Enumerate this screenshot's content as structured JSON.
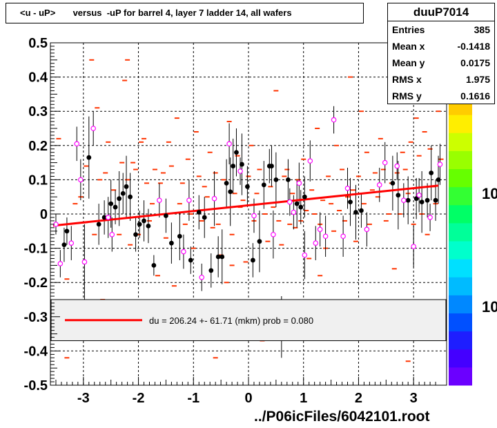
{
  "title": "<u - uP>       versus  -uP for barrel 4, layer 7 ladder 14, all wafers",
  "stats": {
    "name": "duuP7014",
    "rows": [
      {
        "key": "Entries",
        "value": "385"
      },
      {
        "key": "Mean x",
        "value": "-0.1418"
      },
      {
        "key": "Mean y",
        "value": "0.0175"
      },
      {
        "key": "RMS x",
        "value": "1.975"
      },
      {
        "key": "RMS y",
        "value": "0.1616"
      }
    ]
  },
  "fit_legend": "du =  206.24 +- 61.71 (mkm) prob = 0.080",
  "footer": "../P06icFiles/6042101.root",
  "palette_labels": [
    "10",
    "10"
  ],
  "colors": {
    "dash": "#ff3300",
    "fit_line": "#ff0000",
    "open_marker": "#ff00ff",
    "filled_marker": "#000000"
  },
  "chart_data": {
    "type": "scatter",
    "xlim": [
      -3.6,
      3.6
    ],
    "ylim": [
      -0.5,
      0.5
    ],
    "x_ticks": [
      -3,
      -2,
      -1,
      0,
      1,
      2,
      3
    ],
    "x_tick_labels": [
      "-3",
      "-2",
      "-1",
      "0",
      "1",
      "2",
      "3"
    ],
    "y_ticks": [
      -0.5,
      -0.4,
      -0.3,
      -0.2,
      -0.1,
      0,
      0.1,
      0.2,
      0.3,
      0.4,
      0.5
    ],
    "y_tick_labels": [
      "-0.5",
      "-0.4",
      "-0.3",
      "-0.2",
      "-0.1",
      "0",
      "0.1",
      "0.2",
      "0.3",
      "0.4",
      "0.5"
    ],
    "grid": true,
    "fit_line": {
      "x": [
        -3.55,
        3.45
      ],
      "y": [
        -0.034,
        0.083
      ]
    },
    "fit_legend_band": [
      -0.37,
      -0.25
    ],
    "filled_points": [
      {
        "x": -3.35,
        "y": -0.09,
        "err": 0.05
      },
      {
        "x": -3.3,
        "y": -0.05,
        "err": 0.04
      },
      {
        "x": -2.9,
        "y": 0.165,
        "err": 0.12
      },
      {
        "x": -2.72,
        "y": -0.03,
        "err": 0.06
      },
      {
        "x": -2.62,
        "y": -0.01,
        "err": 0.05
      },
      {
        "x": -2.5,
        "y": 0.03,
        "err": 0.07
      },
      {
        "x": -2.42,
        "y": 0.02,
        "err": 0.05
      },
      {
        "x": -2.35,
        "y": 0.045,
        "err": 0.08
      },
      {
        "x": -2.28,
        "y": 0.06,
        "err": 0.06
      },
      {
        "x": -2.22,
        "y": 0.08,
        "err": 0.09
      },
      {
        "x": -2.15,
        "y": 0.05,
        "err": 0.07
      },
      {
        "x": -2.05,
        "y": -0.06,
        "err": 0.05
      },
      {
        "x": -1.98,
        "y": -0.03,
        "err": 0.04
      },
      {
        "x": -1.9,
        "y": -0.02,
        "err": 0.06
      },
      {
        "x": -1.82,
        "y": -0.035,
        "err": 0.05
      },
      {
        "x": -1.72,
        "y": -0.15,
        "err": 0.03
      },
      {
        "x": -1.5,
        "y": -0.005,
        "err": 0.05
      },
      {
        "x": -1.4,
        "y": -0.085,
        "err": 0.06
      },
      {
        "x": -1.25,
        "y": -0.065,
        "err": 0.07
      },
      {
        "x": -1.05,
        "y": -0.135,
        "err": 0.04
      },
      {
        "x": -0.9,
        "y": 0.005,
        "err": 0.05
      },
      {
        "x": -0.8,
        "y": -0.01,
        "err": 0.06
      },
      {
        "x": -0.68,
        "y": -0.165,
        "err": 0.05
      },
      {
        "x": -0.55,
        "y": -0.125,
        "err": 0.06
      },
      {
        "x": -0.48,
        "y": -0.125,
        "err": 0.08
      },
      {
        "x": -0.4,
        "y": 0.09,
        "err": 0.07
      },
      {
        "x": -0.33,
        "y": 0.065,
        "err": 0.1
      },
      {
        "x": -0.28,
        "y": 0.14,
        "err": 0.08
      },
      {
        "x": -0.22,
        "y": 0.18,
        "err": 0.07
      },
      {
        "x": -0.12,
        "y": 0.145,
        "err": 0.09
      },
      {
        "x": -0.02,
        "y": 0.08,
        "err": 0.06
      },
      {
        "x": 0.08,
        "y": -0.135,
        "err": 0.05
      },
      {
        "x": 0.2,
        "y": -0.08,
        "err": 0.09
      },
      {
        "x": 0.28,
        "y": 0.085,
        "err": 0.07
      },
      {
        "x": 0.38,
        "y": 0.14,
        "err": 0.05
      },
      {
        "x": 0.42,
        "y": 0.14,
        "err": 0.06
      },
      {
        "x": 0.5,
        "y": 0.1,
        "err": 0.08
      },
      {
        "x": 0.6,
        "y": -0.33,
        "err": 0.09
      },
      {
        "x": 0.72,
        "y": 0.1,
        "err": 0.06
      },
      {
        "x": 0.88,
        "y": 0.03,
        "err": 0.07
      },
      {
        "x": 0.95,
        "y": 0.02,
        "err": 0.05
      },
      {
        "x": 1.02,
        "y": 0.05,
        "err": 0.06
      },
      {
        "x": 1.85,
        "y": 0.035,
        "err": 0.07
      },
      {
        "x": 1.95,
        "y": 0.005,
        "err": 0.08
      },
      {
        "x": 2.05,
        "y": 0.01,
        "err": 0.05
      },
      {
        "x": 2.62,
        "y": 0.09,
        "err": 0.08
      },
      {
        "x": 2.72,
        "y": 0.055,
        "err": 0.1
      },
      {
        "x": 2.9,
        "y": 0.04,
        "err": 0.07
      },
      {
        "x": 3.05,
        "y": 0.045,
        "err": 0.06
      },
      {
        "x": 3.15,
        "y": 0.035,
        "err": 0.09
      },
      {
        "x": 3.25,
        "y": 0.04,
        "err": 0.05
      },
      {
        "x": 3.32,
        "y": 0.12,
        "err": 0.08
      },
      {
        "x": 3.4,
        "y": 0.04,
        "err": 0.06
      },
      {
        "x": 3.45,
        "y": 0.1,
        "err": 0.07
      }
    ],
    "open_points": [
      {
        "x": -3.5,
        "y": -0.03,
        "err": 0.03
      },
      {
        "x": -3.42,
        "y": -0.145,
        "err": 0.04
      },
      {
        "x": -3.22,
        "y": -0.085,
        "err": 0.05
      },
      {
        "x": -3.12,
        "y": 0.205,
        "err": 0.05
      },
      {
        "x": -3.05,
        "y": 0.1,
        "err": 0.06
      },
      {
        "x": -2.98,
        "y": -0.14,
        "err": 0.11
      },
      {
        "x": -2.82,
        "y": 0.25,
        "err": 0.05
      },
      {
        "x": -2.55,
        "y": -0.01,
        "err": 0.06
      },
      {
        "x": -2.48,
        "y": -0.06,
        "err": 0.05
      },
      {
        "x": -1.62,
        "y": 0.04,
        "err": 0.05
      },
      {
        "x": -1.18,
        "y": -0.11,
        "err": 0.05
      },
      {
        "x": -1.08,
        "y": 0.04,
        "err": 0.06
      },
      {
        "x": -0.85,
        "y": -0.185,
        "err": 0.04
      },
      {
        "x": -0.62,
        "y": 0.045,
        "err": 0.08
      },
      {
        "x": -0.35,
        "y": 0.205,
        "err": 0.06
      },
      {
        "x": -0.15,
        "y": 0.125,
        "err": 0.04
      },
      {
        "x": 0.1,
        "y": -0.005,
        "err": 0.05
      },
      {
        "x": 0.45,
        "y": -0.06,
        "err": 0.07
      },
      {
        "x": 0.75,
        "y": 0.035,
        "err": 0.04
      },
      {
        "x": 0.82,
        "y": 0.005,
        "err": 0.05
      },
      {
        "x": 0.92,
        "y": 0.09,
        "err": 0.06
      },
      {
        "x": 1.02,
        "y": -0.12,
        "err": 0.07
      },
      {
        "x": 1.12,
        "y": 0.155,
        "err": 0.06
      },
      {
        "x": 1.22,
        "y": -0.085,
        "err": 0.05
      },
      {
        "x": 1.3,
        "y": -0.045,
        "err": 0.05
      },
      {
        "x": 1.4,
        "y": -0.065,
        "err": 0.06
      },
      {
        "x": 1.55,
        "y": 0.275,
        "err": 0.04
      },
      {
        "x": 1.72,
        "y": -0.065,
        "err": 0.06
      },
      {
        "x": 1.8,
        "y": 0.075,
        "err": 0.06
      },
      {
        "x": 2.15,
        "y": -0.045,
        "err": 0.05
      },
      {
        "x": 2.38,
        "y": 0.085,
        "err": 0.05
      },
      {
        "x": 2.48,
        "y": 0.15,
        "err": 0.06
      },
      {
        "x": 2.7,
        "y": 0.14,
        "err": 0.04
      },
      {
        "x": 2.82,
        "y": 0.04,
        "err": 0.05
      },
      {
        "x": 3.0,
        "y": -0.095,
        "err": 0.06
      },
      {
        "x": 3.1,
        "y": 0.055,
        "err": 0.05
      },
      {
        "x": 3.3,
        "y": -0.01,
        "err": 0.04
      },
      {
        "x": 3.48,
        "y": 0.145,
        "err": 0.06
      }
    ],
    "dash_points": [
      [
        -3.45,
        0.22
      ],
      [
        -3.3,
        -0.19
      ],
      [
        -3.15,
        0.03
      ],
      [
        -3.1,
        -0.32
      ],
      [
        -3.05,
        0.05
      ],
      [
        -2.95,
        0.14
      ],
      [
        -2.85,
        0.45
      ],
      [
        -2.8,
        -0.06
      ],
      [
        -2.75,
        0.31
      ],
      [
        -2.7,
        0.1
      ],
      [
        -2.65,
        -0.25
      ],
      [
        -2.6,
        0.12
      ],
      [
        -2.55,
        0.21
      ],
      [
        -2.45,
        0.07
      ],
      [
        -2.35,
        -0.06
      ],
      [
        -2.3,
        0.15
      ],
      [
        -2.25,
        0.39
      ],
      [
        -2.2,
        0.1
      ],
      [
        -2.15,
        -0.09
      ],
      [
        -2.1,
        0.15
      ],
      [
        -2.05,
        0.13
      ],
      [
        -2.0,
        -0.06
      ],
      [
        -1.95,
        0.21
      ],
      [
        -1.9,
        0.22
      ],
      [
        -1.85,
        0.09
      ],
      [
        -1.8,
        -0.02
      ],
      [
        -1.75,
        0.03
      ],
      [
        -1.7,
        0.13
      ],
      [
        -1.65,
        -0.18
      ],
      [
        -1.6,
        0.09
      ],
      [
        -1.55,
        0.12
      ],
      [
        -1.5,
        -0.07
      ],
      [
        -1.45,
        0.21
      ],
      [
        -1.4,
        0.14
      ],
      [
        -1.35,
        -0.21
      ],
      [
        -1.3,
        0.28
      ],
      [
        -1.25,
        0.03
      ],
      [
        -1.2,
        0.09
      ],
      [
        -1.15,
        -0.03
      ],
      [
        -1.1,
        0.16
      ],
      [
        -1.05,
        0.0
      ],
      [
        -1.0,
        -0.1
      ],
      [
        -0.95,
        0.24
      ],
      [
        -0.9,
        0.11
      ],
      [
        -0.85,
        -0.02
      ],
      [
        -0.8,
        0.08
      ],
      [
        -0.75,
        0.05
      ],
      [
        -0.7,
        0.18
      ],
      [
        -0.65,
        -0.04
      ],
      [
        -0.6,
        0.12
      ],
      [
        -0.55,
        -0.03
      ],
      [
        -0.5,
        -0.12
      ],
      [
        -0.45,
        0.1
      ],
      [
        -0.4,
        -0.2
      ],
      [
        -0.35,
        0.27
      ],
      [
        -0.3,
        -0.06
      ],
      [
        -0.25,
        0.06
      ],
      [
        -0.2,
        0.17
      ],
      [
        -0.15,
        0.02
      ],
      [
        -0.1,
        0.04
      ],
      [
        -0.05,
        -0.14
      ],
      [
        0.0,
        0.11
      ],
      [
        0.05,
        0.2
      ],
      [
        0.1,
        -0.02
      ],
      [
        0.15,
        0.06
      ],
      [
        0.2,
        0.13
      ],
      [
        0.25,
        -0.37
      ],
      [
        0.3,
        0.0
      ],
      [
        0.35,
        -0.08
      ],
      [
        0.4,
        0.08
      ],
      [
        0.45,
        0.02
      ],
      [
        0.5,
        0.36
      ],
      [
        0.55,
        -0.02
      ],
      [
        0.6,
        -0.09
      ],
      [
        0.65,
        0.11
      ],
      [
        0.7,
        0.13
      ],
      [
        0.75,
        -0.03
      ],
      [
        0.8,
        0.06
      ],
      [
        0.85,
        -0.04
      ],
      [
        0.9,
        0.1
      ],
      [
        0.95,
        -0.02
      ],
      [
        1.0,
        0.16
      ],
      [
        1.05,
        0.01
      ],
      [
        1.1,
        -0.13
      ],
      [
        1.15,
        0.07
      ],
      [
        1.2,
        0.0
      ],
      [
        1.25,
        0.25
      ],
      [
        1.3,
        -0.03
      ],
      [
        1.35,
        0.04
      ],
      [
        1.4,
        -0.1
      ],
      [
        1.45,
        0.11
      ],
      [
        1.5,
        0.03
      ],
      [
        1.55,
        -0.05
      ],
      [
        1.6,
        0.2
      ],
      [
        1.65,
        0.01
      ],
      [
        1.7,
        0.13
      ],
      [
        1.75,
        -0.02
      ],
      [
        1.8,
        0.05
      ],
      [
        1.85,
        0.4
      ],
      [
        1.9,
        0.07
      ],
      [
        1.95,
        -0.08
      ],
      [
        2.0,
        0.11
      ],
      [
        2.05,
        0.3
      ],
      [
        2.1,
        0.03
      ],
      [
        2.15,
        0.18
      ],
      [
        2.2,
        -0.03
      ],
      [
        2.25,
        0.07
      ],
      [
        2.3,
        0.12
      ],
      [
        2.35,
        0.05
      ],
      [
        2.4,
        0.22
      ],
      [
        2.45,
        0.13
      ],
      [
        2.5,
        -0.02
      ],
      [
        2.55,
        0.0
      ],
      [
        2.6,
        0.09
      ],
      [
        2.65,
        -0.16
      ],
      [
        2.7,
        0.12
      ],
      [
        2.75,
        0.0
      ],
      [
        2.8,
        0.18
      ],
      [
        2.85,
        0.13
      ],
      [
        2.9,
        0.06
      ],
      [
        2.95,
        0.21
      ],
      [
        3.0,
        -0.03
      ],
      [
        3.05,
        0.28
      ],
      [
        3.1,
        0.17
      ],
      [
        3.15,
        0.0
      ],
      [
        3.2,
        0.24
      ],
      [
        3.25,
        -0.06
      ],
      [
        3.3,
        0.19
      ],
      [
        3.35,
        0.08
      ],
      [
        3.4,
        0.03
      ],
      [
        3.45,
        0.3
      ],
      [
        3.5,
        0.16
      ],
      [
        -3.3,
        -0.42
      ],
      [
        -2.2,
        0.45
      ],
      [
        -0.3,
        -0.15
      ],
      [
        0.6,
        -0.26
      ],
      [
        1.3,
        -0.18
      ],
      [
        2.9,
        -0.43
      ],
      [
        -0.6,
        -0.42
      ]
    ]
  }
}
